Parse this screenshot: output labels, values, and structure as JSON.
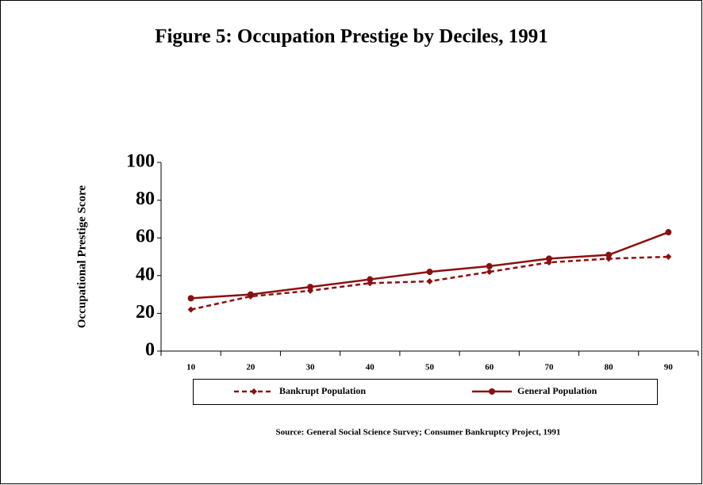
{
  "chart_data": {
    "type": "line",
    "title": "Figure 5: Occupation Prestige by Deciles, 1991",
    "y_label": "Occupational Prestige Score",
    "source": "Source: General Social Science Survey; Consumer Bankruptcy Project, 1991",
    "categories": [
      "10",
      "20",
      "30",
      "40",
      "50",
      "60",
      "70",
      "80",
      "90"
    ],
    "series": [
      {
        "name": "Bankrupt Population",
        "color": "#8b0f0f",
        "dashed": true,
        "marker": "diamond",
        "values": [
          22,
          29,
          32,
          36,
          37,
          42,
          47,
          49,
          50
        ]
      },
      {
        "name": "General Population",
        "color": "#8b0f0f",
        "dashed": false,
        "marker": "circle",
        "values": [
          28,
          30,
          34,
          38,
          42,
          45,
          49,
          51,
          63
        ]
      }
    ],
    "ylim": [
      0,
      100
    ],
    "yticks": [
      0,
      20,
      40,
      60,
      80,
      100
    ],
    "grid": false
  }
}
